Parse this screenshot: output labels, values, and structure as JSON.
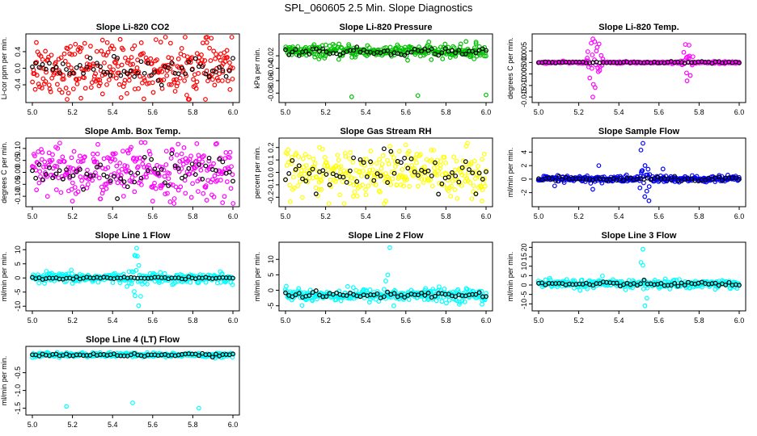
{
  "title": "SPL_060605  2.5 Min. Slope Diagnostics",
  "chart_data": [
    {
      "type": "scatter",
      "title": "Slope Li-820 CO2",
      "ylabel": "Li-cor ppm per min.",
      "color": "#ff0000",
      "xlim": [
        5.0,
        6.0
      ],
      "ylim": [
        -0.75,
        0.75
      ],
      "yticks": [
        -0.4,
        0.0,
        0.4
      ],
      "ytick_labels": [
        "-0.4",
        "0.0",
        "0.4"
      ],
      "xticks": [
        5.0,
        5.2,
        5.4,
        5.6,
        5.8,
        6.0
      ],
      "xtick_labels": [
        "5.0",
        "5.2",
        "5.4",
        "5.6",
        "5.8",
        "6.0"
      ],
      "center": 0.0,
      "spread": 0.32,
      "black_spread": 0.14,
      "outliers": [
        [
          5.02,
          0.62
        ],
        [
          5.35,
          -0.62
        ],
        [
          5.64,
          0.63
        ],
        [
          5.87,
          0.62
        ],
        [
          5.18,
          -0.6
        ],
        [
          5.77,
          -0.65
        ]
      ],
      "spikes": []
    },
    {
      "type": "scatter",
      "title": "Slope Li-820 Pressure",
      "ylabel": "kPa per min.",
      "color": "#00c000",
      "xlim": [
        5.0,
        6.0
      ],
      "ylim": [
        -0.09,
        0.01
      ],
      "yticks": [
        -0.08,
        -0.06,
        -0.04,
        -0.02
      ],
      "ytick_labels": [
        "-0.08",
        "-0.06",
        "-0.04",
        "-0.02"
      ],
      "xticks": [
        5.0,
        5.2,
        5.4,
        5.6,
        5.8,
        6.0
      ],
      "xtick_labels": [
        "5.0",
        "5.2",
        "5.4",
        "5.6",
        "5.8",
        "6.0"
      ],
      "center": -0.013,
      "spread": 0.005,
      "black_spread": 0.003,
      "outliers": [
        [
          5.33,
          -0.086
        ],
        [
          5.66,
          -0.084
        ],
        [
          6.0,
          -0.083
        ],
        [
          5.95,
          0.002
        ],
        [
          5.9,
          0.003
        ],
        [
          5.94,
          -0.025
        ]
      ],
      "spikes": []
    },
    {
      "type": "scatter",
      "title": "Slope Li-820 Temp.",
      "ylabel": "degrees C per min.",
      "color": "#ff00ff",
      "xlim": [
        5.0,
        6.0
      ],
      "ylim": [
        -0.016,
        0.011
      ],
      "yticks": [
        -0.015,
        -0.01,
        -0.005,
        0.0,
        0.005
      ],
      "ytick_labels": [
        "-0.015",
        "-0.010",
        "-0.005",
        "0.000",
        "0.005"
      ],
      "xticks": [
        5.0,
        5.2,
        5.4,
        5.6,
        5.8,
        6.0
      ],
      "xtick_labels": [
        "5.0",
        "5.2",
        "5.4",
        "5.6",
        "5.8",
        "6.0"
      ],
      "center": 0.0,
      "spread": 0.0002,
      "black_spread": 0.0002,
      "outliers": [
        [
          5.28,
          0.009
        ],
        [
          5.27,
          -0.015
        ],
        [
          5.75,
          0.0075
        ],
        [
          5.74,
          -0.008
        ]
      ],
      "spikes": [
        {
          "x": 5.28,
          "w": 0.05,
          "amp": 0.006
        },
        {
          "x": 5.74,
          "w": 0.04,
          "amp": 0.005
        }
      ]
    },
    {
      "type": "scatter",
      "title": "Slope Amb. Box Temp.",
      "ylabel": "degrees C per min.",
      "color": "#ff00ff",
      "xlim": [
        5.0,
        6.0
      ],
      "ylim": [
        -0.13,
        0.13
      ],
      "yticks": [
        -0.1,
        -0.05,
        0.0,
        0.05,
        0.1
      ],
      "ytick_labels": [
        "-0.10",
        "-0.05",
        "0.00",
        "0.05",
        "0.10"
      ],
      "xticks": [
        5.0,
        5.2,
        5.4,
        5.6,
        5.8,
        6.0
      ],
      "xtick_labels": [
        "5.0",
        "5.2",
        "5.4",
        "5.6",
        "5.8",
        "6.0"
      ],
      "center": 0.0,
      "spread": 0.055,
      "black_spread": 0.035,
      "outliers": [
        [
          5.82,
          0.12
        ],
        [
          5.2,
          -0.12
        ],
        [
          5.6,
          -0.12
        ]
      ],
      "spikes": []
    },
    {
      "type": "scatter",
      "title": "Slope Gas Stream RH",
      "ylabel": "percent per min.",
      "color": "#ffff00",
      "xlim": [
        5.0,
        6.0
      ],
      "ylim": [
        -0.25,
        0.25
      ],
      "yticks": [
        -0.2,
        -0.1,
        0.0,
        0.1,
        0.2
      ],
      "ytick_labels": [
        "-0.2",
        "-0.1",
        "0.0",
        "0.1",
        "0.2"
      ],
      "xticks": [
        5.0,
        5.2,
        5.4,
        5.6,
        5.8,
        6.0
      ],
      "xtick_labels": [
        "5.0",
        "5.2",
        "5.4",
        "5.6",
        "5.8",
        "6.0"
      ],
      "center": 0.0,
      "spread": 0.09,
      "black_spread": 0.07,
      "outliers": [
        [
          5.17,
          0.2
        ],
        [
          5.5,
          -0.23
        ],
        [
          5.98,
          -0.23
        ],
        [
          5.6,
          0.22
        ]
      ],
      "spikes": []
    },
    {
      "type": "scatter",
      "title": "Slope Sample Flow",
      "ylabel": "ml/min per min.",
      "color": "#0000ff",
      "xlim": [
        5.0,
        6.0
      ],
      "ylim": [
        -3.6,
        5.6
      ],
      "yticks": [
        -2,
        0,
        2,
        4
      ],
      "ytick_labels": [
        "-2",
        "0",
        "2",
        "4"
      ],
      "xticks": [
        5.0,
        5.2,
        5.4,
        5.6,
        5.8,
        6.0
      ],
      "xtick_labels": [
        "5.0",
        "5.2",
        "5.4",
        "5.6",
        "5.8",
        "6.0"
      ],
      "center": 0.0,
      "spread": 0.25,
      "black_spread": 0.15,
      "outliers": [
        [
          5.52,
          5.3
        ],
        [
          5.51,
          4.3
        ],
        [
          5.55,
          -3.2
        ],
        [
          5.3,
          2.0
        ],
        [
          5.27,
          -1.5
        ],
        [
          5.62,
          1.5
        ],
        [
          5.08,
          -1.0
        ]
      ],
      "spikes": [
        {
          "x": 5.53,
          "w": 0.03,
          "amp": 2.2
        }
      ]
    },
    {
      "type": "scatter",
      "title": "Slope Line 1 Flow",
      "ylabel": "ml/min per min.",
      "color": "#00ffff",
      "xlim": [
        5.0,
        6.0
      ],
      "ylim": [
        -10.5,
        11.5
      ],
      "yticks": [
        -10,
        -5,
        0,
        5,
        10
      ],
      "ytick_labels": [
        "-10",
        "-5",
        "0",
        "5",
        "10"
      ],
      "xticks": [
        5.0,
        5.2,
        5.4,
        5.6,
        5.8,
        6.0
      ],
      "xtick_labels": [
        "5.0",
        "5.2",
        "5.4",
        "5.6",
        "5.8",
        "6.0"
      ],
      "center": 0.0,
      "spread": 0.9,
      "black_spread": 0.2,
      "outliers": [
        [
          5.52,
          10.5
        ],
        [
          5.53,
          -9.8
        ],
        [
          5.51,
          8.0
        ],
        [
          5.54,
          -6.5
        ]
      ],
      "spikes": [
        {
          "x": 5.52,
          "w": 0.03,
          "amp": 4.0
        }
      ]
    },
    {
      "type": "scatter",
      "title": "Slope Line 2 Flow",
      "ylabel": "ml/min per min.",
      "color": "#00ffff",
      "xlim": [
        5.0,
        6.0
      ],
      "ylim": [
        -5.6,
        14.5
      ],
      "yticks": [
        -5,
        0,
        5,
        10
      ],
      "ytick_labels": [
        "-5",
        "0",
        "5",
        "10"
      ],
      "xticks": [
        5.0,
        5.2,
        5.4,
        5.6,
        5.8,
        6.0
      ],
      "xtick_labels": [
        "5.0",
        "5.2",
        "5.4",
        "5.6",
        "5.8",
        "6.0"
      ],
      "center": -1.5,
      "spread": 1.0,
      "black_spread": 0.5,
      "outliers": [
        [
          5.52,
          13.8
        ],
        [
          5.51,
          5.0
        ],
        [
          5.54,
          -5.0
        ],
        [
          5.98,
          -4.5
        ],
        [
          5.5,
          3.0
        ]
      ],
      "spikes": []
    },
    {
      "type": "scatter",
      "title": "Slope Line 3 Flow",
      "ylabel": "ml/min per min.",
      "color": "#00ffff",
      "xlim": [
        5.0,
        6.0
      ],
      "ylim": [
        -12,
        21
      ],
      "yticks": [
        -10,
        -5,
        0,
        5,
        10,
        15,
        20
      ],
      "ytick_labels": [
        "-10",
        "-5",
        "0",
        "5",
        "10",
        "15",
        "20"
      ],
      "xticks": [
        5.0,
        5.2,
        5.4,
        5.6,
        5.8,
        6.0
      ],
      "xtick_labels": [
        "5.0",
        "5.2",
        "5.4",
        "5.6",
        "5.8",
        "6.0"
      ],
      "center": 0.5,
      "spread": 1.2,
      "black_spread": 0.6,
      "outliers": [
        [
          5.52,
          19.0
        ],
        [
          5.51,
          12.0
        ],
        [
          5.52,
          10.5
        ],
        [
          5.53,
          -11.0
        ],
        [
          5.54,
          -7.0
        ]
      ],
      "spikes": []
    },
    {
      "type": "scatter",
      "title": "Slope Line 4 (LT) Flow",
      "ylabel": "ml/min per min.",
      "color": "#00ffff",
      "xlim": [
        5.0,
        6.0
      ],
      "ylim": [
        -1.6,
        0.15
      ],
      "yticks": [
        -1.5,
        -1.0,
        -0.5
      ],
      "ytick_labels": [
        "-1.5",
        "-1.0",
        "-0.5"
      ],
      "xticks": [
        5.0,
        5.2,
        5.4,
        5.6,
        5.8,
        6.0
      ],
      "xtick_labels": [
        "5.0",
        "5.2",
        "5.4",
        "5.6",
        "5.8",
        "6.0"
      ],
      "center": 0.0,
      "spread": 0.03,
      "black_spread": 0.02,
      "outliers": [
        [
          5.17,
          -1.45
        ],
        [
          5.5,
          -1.35
        ],
        [
          5.83,
          -1.5
        ]
      ],
      "spikes": []
    }
  ]
}
